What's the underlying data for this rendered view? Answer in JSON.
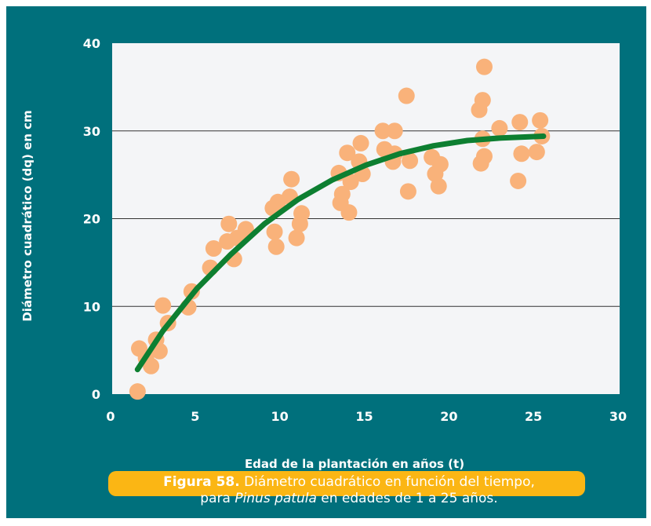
{
  "chart_data": {
    "type": "scatter",
    "xlabel": "Edad de la plantación en años (t)",
    "ylabel": "Diámetro cuadrático (dq) en cm",
    "xlim": [
      0,
      30
    ],
    "ylim": [
      0,
      40
    ],
    "x_ticks": [
      "0",
      "5",
      "10",
      "15",
      "20",
      "25",
      "30"
    ],
    "y_ticks": [
      "0",
      "10",
      "20",
      "30",
      "40"
    ],
    "grid": "horizontal",
    "points": [
      [
        1.5,
        0.3
      ],
      [
        1.6,
        5.2
      ],
      [
        2.0,
        4.1
      ],
      [
        2.3,
        3.2
      ],
      [
        2.6,
        6.2
      ],
      [
        2.8,
        4.9
      ],
      [
        3.0,
        10.1
      ],
      [
        3.3,
        8.1
      ],
      [
        4.5,
        9.9
      ],
      [
        4.7,
        11.7
      ],
      [
        5.8,
        14.4
      ],
      [
        6.0,
        16.6
      ],
      [
        6.8,
        17.4
      ],
      [
        6.9,
        19.4
      ],
      [
        7.2,
        15.4
      ],
      [
        7.4,
        17.8
      ],
      [
        7.9,
        18.8
      ],
      [
        9.6,
        18.5
      ],
      [
        9.7,
        16.8
      ],
      [
        9.5,
        21.2
      ],
      [
        9.8,
        21.9
      ],
      [
        10.5,
        22.5
      ],
      [
        10.6,
        24.5
      ],
      [
        10.9,
        17.8
      ],
      [
        11.1,
        19.4
      ],
      [
        11.2,
        20.6
      ],
      [
        13.4,
        25.2
      ],
      [
        13.5,
        21.8
      ],
      [
        13.6,
        22.8
      ],
      [
        13.9,
        27.5
      ],
      [
        14.0,
        20.7
      ],
      [
        14.1,
        24.2
      ],
      [
        14.6,
        26.5
      ],
      [
        14.7,
        28.6
      ],
      [
        14.8,
        25.1
      ],
      [
        16.0,
        30.0
      ],
      [
        16.1,
        27.9
      ],
      [
        16.6,
        26.5
      ],
      [
        16.7,
        27.4
      ],
      [
        16.7,
        30.0
      ],
      [
        17.4,
        34.0
      ],
      [
        17.5,
        23.1
      ],
      [
        17.6,
        26.6
      ],
      [
        18.9,
        27.0
      ],
      [
        19.1,
        25.1
      ],
      [
        19.3,
        23.7
      ],
      [
        19.4,
        26.2
      ],
      [
        21.7,
        32.4
      ],
      [
        21.8,
        26.3
      ],
      [
        21.9,
        29.1
      ],
      [
        21.9,
        33.5
      ],
      [
        22.0,
        27.1
      ],
      [
        22.0,
        37.3
      ],
      [
        22.9,
        30.3
      ],
      [
        24.0,
        24.3
      ],
      [
        24.1,
        31.0
      ],
      [
        24.2,
        27.4
      ],
      [
        25.1,
        27.6
      ],
      [
        25.3,
        31.2
      ],
      [
        25.4,
        29.4
      ]
    ],
    "trend": [
      [
        1.5,
        2.8
      ],
      [
        3,
        7.2
      ],
      [
        5,
        12.0
      ],
      [
        7,
        15.9
      ],
      [
        9,
        19.4
      ],
      [
        11,
        22.2
      ],
      [
        13,
        24.4
      ],
      [
        15,
        26.1
      ],
      [
        17,
        27.4
      ],
      [
        19,
        28.3
      ],
      [
        21,
        28.9
      ],
      [
        23,
        29.2
      ],
      [
        25.5,
        29.4
      ]
    ],
    "colors": {
      "background": "#00707c",
      "plot_area": "#f4f5f7",
      "points": "#f9b27a",
      "trend": "#0d7f31",
      "caption_box": "#fbb614",
      "text": "#ffffff"
    }
  },
  "caption": {
    "label": "Figura 58.",
    "line1_rest": " Diámetro cuadrático en función del tiempo,",
    "line2_pre": "para ",
    "species": "Pinus patula",
    "line2_post": " en edades de 1 a 25 años."
  }
}
